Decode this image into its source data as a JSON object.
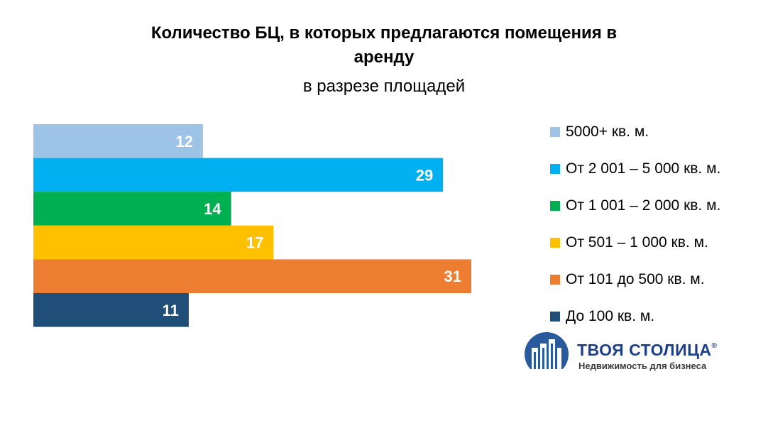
{
  "chart_data": {
    "type": "bar",
    "orientation": "horizontal",
    "title": "Количество БЦ, в которых предлагаются помещения в аренду",
    "title_lines": [
      "Количество БЦ, в которых предлагаются помещения в",
      "аренду"
    ],
    "subtitle": "в разрезе площадей",
    "xlim": [
      0,
      31
    ],
    "categories": [
      "5000+ кв. м.",
      "От 2 001 – 5 000 кв. м.",
      "От 1 001 – 2 000 кв. м.",
      "От 501 – 1 000 кв. м.",
      "От 101 до 500 кв. м.",
      "До 100 кв. м."
    ],
    "values": [
      12,
      29,
      14,
      17,
      31,
      11
    ],
    "colors": [
      "#9dc3e6",
      "#00b0f0",
      "#00b050",
      "#ffc000",
      "#ed7d31",
      "#1f4e79"
    ],
    "legend_position": "right"
  },
  "logo": {
    "name": "ТВОЯ СТОЛИЦА",
    "registered_mark": "®",
    "tagline": "Недвижимость для бизнеса",
    "brand_color": "#1d3f8a"
  }
}
